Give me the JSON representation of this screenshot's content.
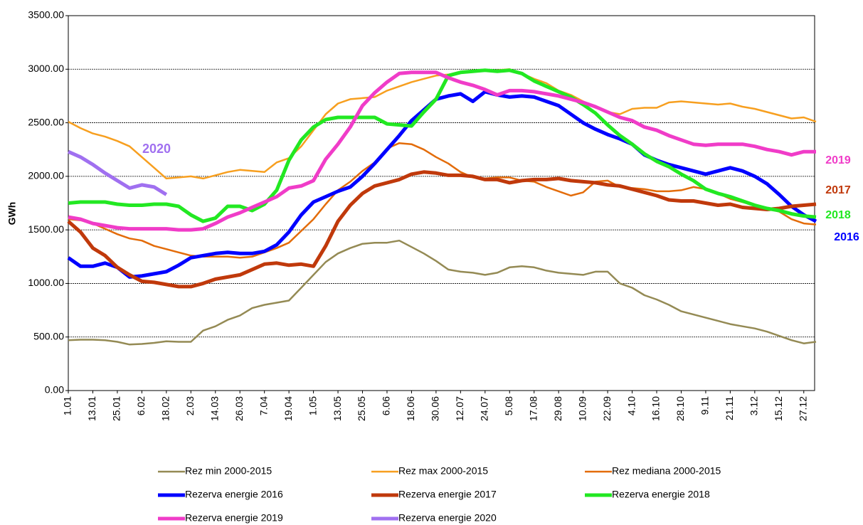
{
  "chart_data": {
    "type": "line",
    "y_label": "GWh",
    "categories": [
      "1.01",
      null,
      "13.01",
      null,
      "25.01",
      null,
      "6.02",
      null,
      "18.02",
      null,
      "2.03",
      null,
      "14.03",
      null,
      "26.03",
      null,
      "7.04",
      null,
      "19.04",
      null,
      "1.05",
      null,
      "13.05",
      null,
      "25.05",
      null,
      "6.06",
      null,
      "18.06",
      null,
      "30.06",
      null,
      "12.07",
      null,
      "24.07",
      null,
      "5.08",
      null,
      "17.08",
      null,
      "29.08",
      null,
      "10.09",
      null,
      "22.09",
      null,
      "4.10",
      null,
      "16.10",
      null,
      "28.10",
      null,
      "9.11",
      null,
      "21.11",
      null,
      "3.12",
      null,
      "15.12",
      null,
      "27.12",
      null
    ],
    "ylim": [
      0,
      3500
    ],
    "yticks": [
      {
        "value": 0,
        "label": "0.00"
      },
      {
        "value": 500,
        "label": "500.00"
      },
      {
        "value": 1000,
        "label": "1000.00"
      },
      {
        "value": 1500,
        "label": "1500.00"
      },
      {
        "value": 2000,
        "label": "2000.00"
      },
      {
        "value": 2500,
        "label": "2500.00"
      },
      {
        "value": 3000,
        "label": "3000.00"
      },
      {
        "value": 3500,
        "label": "3500.00"
      }
    ],
    "grid": true,
    "series": [
      {
        "name": "Rez min 2000-2015",
        "color": "#948a54",
        "width": 2.5,
        "values": [
          470,
          475,
          475,
          470,
          455,
          430,
          435,
          445,
          460,
          455,
          455,
          560,
          600,
          660,
          700,
          770,
          800,
          820,
          840,
          960,
          1080,
          1200,
          1280,
          1330,
          1370,
          1380,
          1380,
          1400,
          1340,
          1280,
          1210,
          1130,
          1110,
          1100,
          1080,
          1100,
          1150,
          1160,
          1150,
          1120,
          1100,
          1090,
          1080,
          1110,
          1110,
          1000,
          960,
          890,
          850,
          800,
          740,
          710,
          680,
          650,
          620,
          600,
          580,
          550,
          510,
          470,
          440,
          455
        ]
      },
      {
        "name": "Rez max 2000-2015",
        "color": "#f79f1f",
        "width": 2.5,
        "values": [
          2510,
          2450,
          2400,
          2370,
          2330,
          2280,
          2180,
          2080,
          1980,
          1990,
          2000,
          1980,
          2010,
          2040,
          2060,
          2050,
          2040,
          2130,
          2170,
          2280,
          2430,
          2580,
          2680,
          2720,
          2730,
          2740,
          2800,
          2840,
          2880,
          2910,
          2940,
          2950,
          2970,
          2990,
          2990,
          2990,
          3000,
          2960,
          2910,
          2870,
          2800,
          2760,
          2700,
          2640,
          2600,
          2580,
          2630,
          2640,
          2640,
          2690,
          2700,
          2690,
          2680,
          2670,
          2680,
          2650,
          2630,
          2600,
          2570,
          2540,
          2550,
          2510
        ]
      },
      {
        "name": "Rez mediana 2000-2015",
        "color": "#e36c0a",
        "width": 2.5,
        "values": [
          1600,
          1590,
          1560,
          1510,
          1460,
          1420,
          1400,
          1350,
          1320,
          1290,
          1260,
          1250,
          1250,
          1250,
          1240,
          1250,
          1290,
          1330,
          1380,
          1490,
          1600,
          1740,
          1870,
          1950,
          2050,
          2130,
          2260,
          2310,
          2300,
          2250,
          2180,
          2120,
          2040,
          1990,
          1980,
          1990,
          1990,
          1960,
          1950,
          1900,
          1860,
          1820,
          1850,
          1950,
          1960,
          1900,
          1890,
          1880,
          1860,
          1860,
          1870,
          1900,
          1880,
          1840,
          1790,
          1760,
          1730,
          1700,
          1670,
          1600,
          1560,
          1550
        ]
      },
      {
        "name": "Rezerva energie 2016",
        "color": "#0000ff",
        "width": 5,
        "label": "2016",
        "values": [
          1240,
          1160,
          1160,
          1190,
          1150,
          1060,
          1070,
          1090,
          1110,
          1170,
          1240,
          1260,
          1280,
          1290,
          1280,
          1280,
          1300,
          1360,
          1480,
          1640,
          1760,
          1810,
          1860,
          1900,
          2000,
          2120,
          2250,
          2380,
          2520,
          2620,
          2720,
          2750,
          2770,
          2700,
          2790,
          2760,
          2740,
          2750,
          2740,
          2700,
          2660,
          2580,
          2500,
          2440,
          2390,
          2350,
          2300,
          2200,
          2150,
          2110,
          2080,
          2050,
          2020,
          2050,
          2080,
          2050,
          2000,
          1930,
          1830,
          1720,
          1640,
          1580
        ]
      },
      {
        "name": "Rezerva energie 2017",
        "color": "#c0390b",
        "width": 5,
        "label": "2017",
        "values": [
          1580,
          1480,
          1330,
          1260,
          1150,
          1080,
          1020,
          1010,
          990,
          970,
          970,
          1000,
          1040,
          1060,
          1080,
          1130,
          1180,
          1190,
          1170,
          1180,
          1160,
          1350,
          1580,
          1730,
          1840,
          1910,
          1940,
          1970,
          2020,
          2040,
          2030,
          2010,
          2010,
          2000,
          1970,
          1970,
          1940,
          1960,
          1970,
          1970,
          1980,
          1960,
          1950,
          1940,
          1920,
          1910,
          1880,
          1850,
          1820,
          1780,
          1770,
          1770,
          1750,
          1730,
          1740,
          1710,
          1700,
          1690,
          1700,
          1720,
          1730,
          1740
        ]
      },
      {
        "name": "Rezerva energie 2018",
        "color": "#22e822",
        "width": 5,
        "label": "2018",
        "values": [
          1750,
          1760,
          1760,
          1760,
          1740,
          1730,
          1730,
          1740,
          1740,
          1720,
          1640,
          1580,
          1610,
          1720,
          1720,
          1680,
          1740,
          1870,
          2150,
          2340,
          2460,
          2530,
          2550,
          2550,
          2550,
          2550,
          2490,
          2480,
          2470,
          2600,
          2720,
          2940,
          2970,
          2980,
          2990,
          2980,
          2990,
          2960,
          2890,
          2840,
          2790,
          2740,
          2670,
          2590,
          2480,
          2380,
          2300,
          2210,
          2140,
          2090,
          2020,
          1960,
          1880,
          1840,
          1810,
          1770,
          1730,
          1700,
          1680,
          1650,
          1630,
          1620
        ]
      },
      {
        "name": "Rezerva energie 2019",
        "color": "#f03cc8",
        "width": 5,
        "label": "2019",
        "values": [
          1620,
          1600,
          1560,
          1540,
          1520,
          1510,
          1510,
          1510,
          1510,
          1500,
          1500,
          1510,
          1560,
          1620,
          1660,
          1710,
          1760,
          1810,
          1890,
          1910,
          1960,
          2160,
          2300,
          2460,
          2660,
          2780,
          2880,
          2960,
          2970,
          2970,
          2970,
          2920,
          2880,
          2850,
          2810,
          2760,
          2800,
          2800,
          2790,
          2770,
          2750,
          2720,
          2690,
          2650,
          2600,
          2550,
          2520,
          2460,
          2430,
          2380,
          2340,
          2300,
          2290,
          2300,
          2300,
          2300,
          2280,
          2250,
          2230,
          2200,
          2230,
          2230
        ]
      },
      {
        "name": "Rezerva energie 2020",
        "color": "#a070f0",
        "width": 5,
        "label": "2020",
        "values": [
          2230,
          2180,
          2110,
          2030,
          1960,
          1890,
          1920,
          1900,
          1830,
          null,
          null,
          null,
          null,
          null,
          null,
          null,
          null,
          null,
          null,
          null,
          null,
          null,
          null,
          null,
          null,
          null,
          null,
          null,
          null,
          null,
          null,
          null,
          null,
          null,
          null,
          null,
          null,
          null,
          null,
          null,
          null,
          null,
          null,
          null,
          null,
          null,
          null,
          null,
          null,
          null,
          null,
          null,
          null,
          null,
          null,
          null,
          null,
          null,
          null,
          null,
          null,
          null
        ]
      }
    ]
  }
}
